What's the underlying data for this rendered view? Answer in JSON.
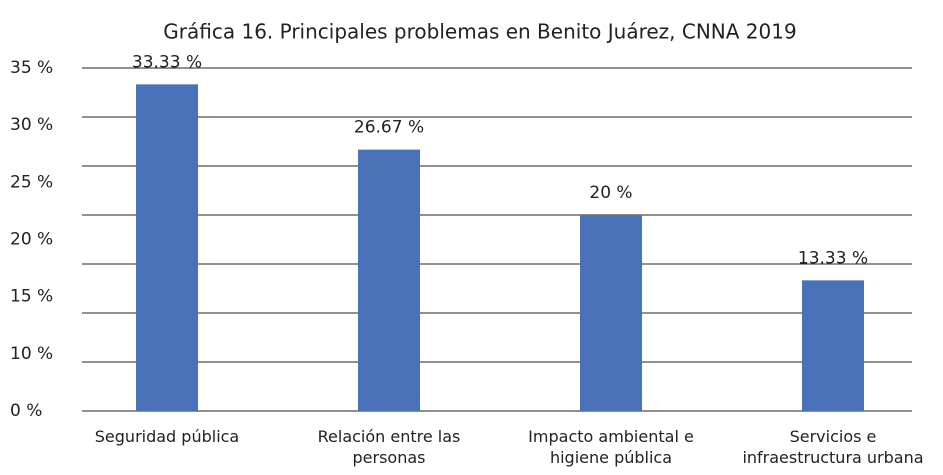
{
  "chart_data": {
    "type": "bar",
    "title": "Gráfica 16. Principales problemas en Benito Juárez, CNNA 2019",
    "categories": [
      "Seguridad pública",
      "Relación entre las personas",
      "Impacto ambiental e higiene pública",
      "Servicios e infraestructura urbana"
    ],
    "values": [
      33.33,
      26.67,
      20,
      13.33
    ],
    "value_labels": [
      "33.33 %",
      "26.67 %",
      "20 %",
      "13.33 %"
    ],
    "color": "#4a72b8",
    "ylim": [
      0,
      35
    ],
    "yticks": [
      {
        "value": 0,
        "label": "0 %"
      },
      {
        "value": 5,
        "label": null
      },
      {
        "value": 10,
        "label": "10 %"
      },
      {
        "value": 15,
        "label": "15 %"
      },
      {
        "value": 20,
        "label": "20 %"
      },
      {
        "value": 25,
        "label": "25 %"
      },
      {
        "value": 30,
        "label": "30 %"
      },
      {
        "value": 35,
        "label": "35 %"
      }
    ],
    "grid": true
  }
}
